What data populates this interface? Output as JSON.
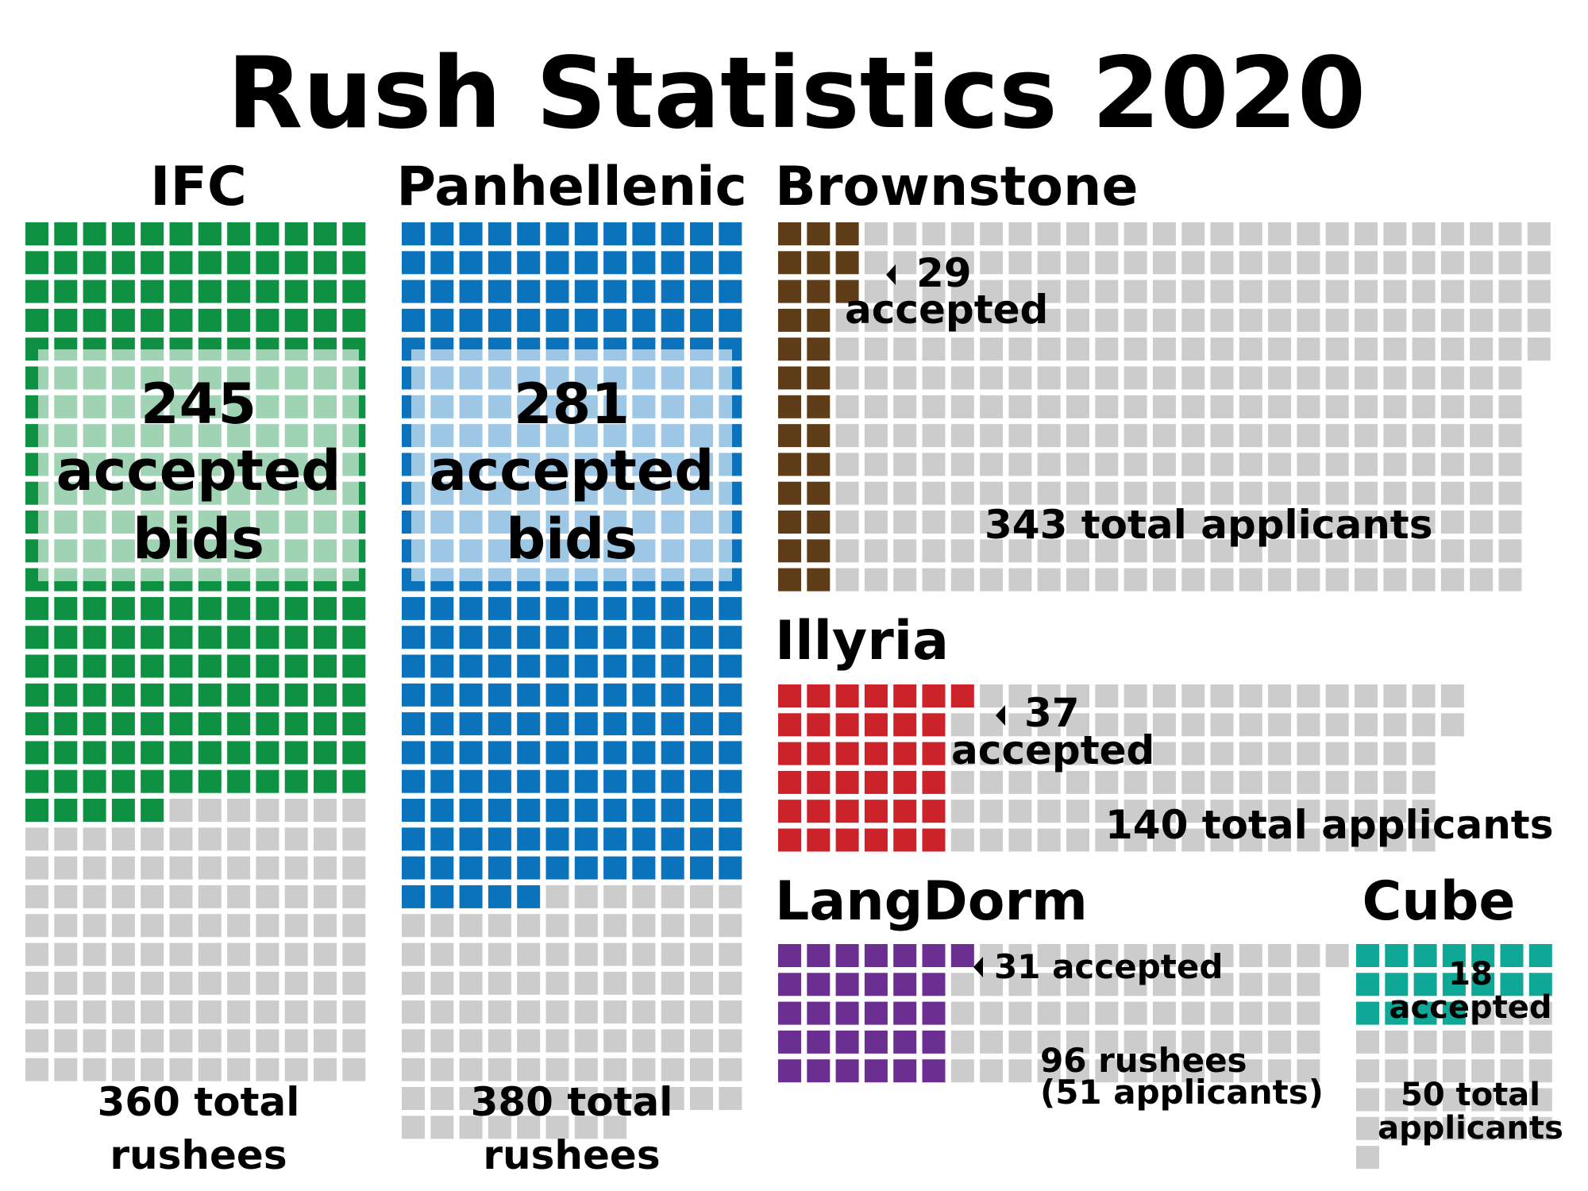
{
  "title": "Rush Statistics 2020",
  "colors": {
    "inactive": "#cccccc",
    "IFC": "#0f9144",
    "Panhellenic": "#0b73bc",
    "Brownstone": "#5e3d18",
    "Illyria": "#cc2229",
    "LangDorm": "#6b2f92",
    "Cube": "#0fa795"
  },
  "chart_data": {
    "type": "waffle",
    "unit": "each square = 1 person",
    "groups": [
      {
        "name": "IFC",
        "accepted": 245,
        "total": 360,
        "accepted_label": [
          "245",
          "accepted",
          "bids"
        ],
        "total_label": [
          "360 total",
          "rushees"
        ]
      },
      {
        "name": "Panhellenic",
        "accepted": 281,
        "total": 380,
        "accepted_label": [
          "281",
          "accepted",
          "bids"
        ],
        "total_label": [
          "380 total",
          "rushees"
        ]
      },
      {
        "name": "Brownstone",
        "accepted": 29,
        "total": 343,
        "accepted_label": [
          "29",
          "accepted"
        ],
        "total_label": [
          "343 total applicants"
        ]
      },
      {
        "name": "Illyria",
        "accepted": 37,
        "total": 140,
        "accepted_label": [
          "37",
          "accepted"
        ],
        "total_label": [
          "140 total applicants"
        ]
      },
      {
        "name": "LangDorm",
        "accepted": 31,
        "total": 96,
        "accepted_label": [
          "31 accepted"
        ],
        "total_label": [
          "96 rushees",
          "(51 applicants)"
        ]
      },
      {
        "name": "Cube",
        "accepted": 18,
        "total": 50,
        "accepted_label": [
          "18",
          "accepted"
        ],
        "total_label": [
          "50 total",
          "applicants"
        ]
      }
    ]
  }
}
